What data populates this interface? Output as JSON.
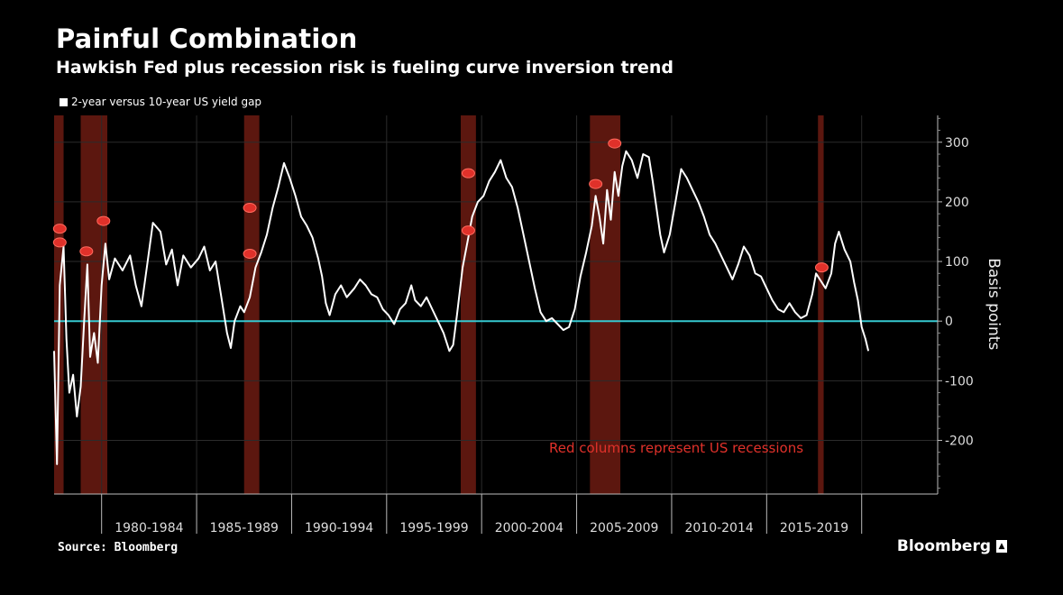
{
  "title": "Painful Combination",
  "subtitle": "Hawkish Fed plus recession risk is fueling curve inversion trend",
  "legend": "2-year versus 10-year US yield gap",
  "source": "Source: Bloomberg",
  "brand": "Bloomberg",
  "chart_data": {
    "type": "line",
    "title": "Painful Combination",
    "subtitle": "Hawkish Fed plus recession risk is fueling curve inversion trend",
    "ylabel": "Basis points",
    "xlabel": "",
    "ylim": [
      -290,
      345
    ],
    "yticks": [
      300,
      200,
      100,
      0,
      -100,
      -200
    ],
    "x_range": [
      1977.0,
      2023.5
    ],
    "x_periods": [
      "1980-1984",
      "1985-1989",
      "1990-1994",
      "1995-1999",
      "2000-2004",
      "2005-2009",
      "2010-2014",
      "2015-2019"
    ],
    "x_period_starts": [
      1979.5,
      1984.5,
      1989.5,
      1994.5,
      1999.5,
      2004.5,
      2009.5,
      2014.5,
      2019.5
    ],
    "grid": true,
    "legend_position": "top-left",
    "annotation": "Red columns represent US recessions",
    "colors": {
      "line": "#ffffff",
      "zero_line": "#36c8d0",
      "recession": "#a82a1c",
      "annotation": "#e0312a"
    },
    "recessions": [
      [
        1977.0,
        1977.5
      ],
      [
        1978.4,
        1979.8
      ],
      [
        1987.0,
        1987.8
      ],
      [
        1998.4,
        1999.2
      ],
      [
        2005.2,
        2006.8
      ],
      [
        2017.2,
        2017.5
      ]
    ],
    "markers": [
      {
        "x": 1977.3,
        "y": 155
      },
      {
        "x": 1977.3,
        "y": 132
      },
      {
        "x": 1978.7,
        "y": 117
      },
      {
        "x": 1979.6,
        "y": 168
      },
      {
        "x": 1987.3,
        "y": 190
      },
      {
        "x": 1987.3,
        "y": 113
      },
      {
        "x": 1998.8,
        "y": 248
      },
      {
        "x": 1998.8,
        "y": 152
      },
      {
        "x": 2005.5,
        "y": 230
      },
      {
        "x": 2006.5,
        "y": 298
      },
      {
        "x": 2017.4,
        "y": 90
      }
    ],
    "series": [
      {
        "values": [
          [
            1977.0,
            -50
          ],
          [
            1977.15,
            -240
          ],
          [
            1977.3,
            60
          ],
          [
            1977.5,
            125
          ],
          [
            1977.65,
            -30
          ],
          [
            1977.8,
            -120
          ],
          [
            1978.0,
            -90
          ],
          [
            1978.2,
            -160
          ],
          [
            1978.4,
            -110
          ],
          [
            1978.6,
            10
          ],
          [
            1978.75,
            95
          ],
          [
            1978.9,
            -60
          ],
          [
            1979.1,
            -20
          ],
          [
            1979.3,
            -70
          ],
          [
            1979.5,
            60
          ],
          [
            1979.7,
            130
          ],
          [
            1979.9,
            70
          ],
          [
            1980.2,
            105
          ],
          [
            1980.6,
            85
          ],
          [
            1981.0,
            110
          ],
          [
            1981.3,
            60
          ],
          [
            1981.6,
            25
          ],
          [
            1981.9,
            95
          ],
          [
            1982.2,
            165
          ],
          [
            1982.6,
            150
          ],
          [
            1982.9,
            95
          ],
          [
            1983.2,
            120
          ],
          [
            1983.5,
            60
          ],
          [
            1983.8,
            110
          ],
          [
            1984.2,
            90
          ],
          [
            1984.6,
            105
          ],
          [
            1984.9,
            125
          ],
          [
            1985.2,
            85
          ],
          [
            1985.5,
            100
          ],
          [
            1985.8,
            40
          ],
          [
            1986.1,
            -20
          ],
          [
            1986.3,
            -45
          ],
          [
            1986.5,
            0
          ],
          [
            1986.8,
            25
          ],
          [
            1987.0,
            15
          ],
          [
            1987.3,
            40
          ],
          [
            1987.6,
            90
          ],
          [
            1987.9,
            115
          ],
          [
            1988.2,
            145
          ],
          [
            1988.5,
            190
          ],
          [
            1988.8,
            225
          ],
          [
            1989.1,
            265
          ],
          [
            1989.4,
            240
          ],
          [
            1989.7,
            210
          ],
          [
            1990.0,
            175
          ],
          [
            1990.3,
            160
          ],
          [
            1990.6,
            140
          ],
          [
            1990.9,
            105
          ],
          [
            1991.1,
            75
          ],
          [
            1991.3,
            30
          ],
          [
            1991.5,
            10
          ],
          [
            1991.8,
            45
          ],
          [
            1992.1,
            60
          ],
          [
            1992.4,
            40
          ],
          [
            1992.8,
            55
          ],
          [
            1993.1,
            70
          ],
          [
            1993.4,
            60
          ],
          [
            1993.7,
            45
          ],
          [
            1994.0,
            40
          ],
          [
            1994.3,
            20
          ],
          [
            1994.6,
            10
          ],
          [
            1994.9,
            -5
          ],
          [
            1995.2,
            20
          ],
          [
            1995.5,
            30
          ],
          [
            1995.8,
            60
          ],
          [
            1996.0,
            35
          ],
          [
            1996.3,
            25
          ],
          [
            1996.6,
            40
          ],
          [
            1996.9,
            20
          ],
          [
            1997.2,
            0
          ],
          [
            1997.5,
            -20
          ],
          [
            1997.8,
            -50
          ],
          [
            1998.0,
            -40
          ],
          [
            1998.2,
            10
          ],
          [
            1998.5,
            90
          ],
          [
            1998.8,
            140
          ],
          [
            1999.0,
            175
          ],
          [
            1999.3,
            200
          ],
          [
            1999.6,
            210
          ],
          [
            1999.9,
            235
          ],
          [
            2000.2,
            250
          ],
          [
            2000.5,
            270
          ],
          [
            2000.8,
            240
          ],
          [
            2001.1,
            225
          ],
          [
            2001.4,
            190
          ],
          [
            2001.7,
            145
          ],
          [
            2002.0,
            100
          ],
          [
            2002.3,
            55
          ],
          [
            2002.6,
            15
          ],
          [
            2002.9,
            0
          ],
          [
            2003.2,
            5
          ],
          [
            2003.5,
            -5
          ],
          [
            2003.8,
            -15
          ],
          [
            2004.1,
            -10
          ],
          [
            2004.4,
            20
          ],
          [
            2004.7,
            75
          ],
          [
            2005.0,
            115
          ],
          [
            2005.3,
            160
          ],
          [
            2005.5,
            210
          ],
          [
            2005.7,
            175
          ],
          [
            2005.9,
            130
          ],
          [
            2006.1,
            220
          ],
          [
            2006.3,
            170
          ],
          [
            2006.5,
            250
          ],
          [
            2006.7,
            210
          ],
          [
            2006.9,
            260
          ],
          [
            2007.1,
            285
          ],
          [
            2007.4,
            270
          ],
          [
            2007.7,
            240
          ],
          [
            2008.0,
            280
          ],
          [
            2008.3,
            275
          ],
          [
            2008.5,
            235
          ],
          [
            2008.7,
            190
          ],
          [
            2008.9,
            145
          ],
          [
            2009.1,
            115
          ],
          [
            2009.4,
            145
          ],
          [
            2009.7,
            200
          ],
          [
            2010.0,
            255
          ],
          [
            2010.3,
            240
          ],
          [
            2010.6,
            220
          ],
          [
            2010.9,
            200
          ],
          [
            2011.2,
            175
          ],
          [
            2011.5,
            145
          ],
          [
            2011.8,
            130
          ],
          [
            2012.1,
            110
          ],
          [
            2012.4,
            90
          ],
          [
            2012.7,
            70
          ],
          [
            2013.0,
            95
          ],
          [
            2013.3,
            125
          ],
          [
            2013.6,
            110
          ],
          [
            2013.9,
            80
          ],
          [
            2014.2,
            75
          ],
          [
            2014.5,
            55
          ],
          [
            2014.8,
            35
          ],
          [
            2015.1,
            20
          ],
          [
            2015.4,
            15
          ],
          [
            2015.7,
            30
          ],
          [
            2016.0,
            15
          ],
          [
            2016.3,
            5
          ],
          [
            2016.6,
            10
          ],
          [
            2016.9,
            45
          ],
          [
            2017.1,
            80
          ],
          [
            2017.3,
            70
          ],
          [
            2017.6,
            55
          ],
          [
            2017.9,
            80
          ],
          [
            2018.1,
            130
          ],
          [
            2018.3,
            150
          ],
          [
            2018.6,
            120
          ],
          [
            2018.9,
            100
          ],
          [
            2019.1,
            65
          ],
          [
            2019.3,
            35
          ],
          [
            2019.5,
            -10
          ],
          [
            2019.7,
            -30
          ],
          [
            2019.85,
            -50
          ]
        ]
      }
    ]
  }
}
